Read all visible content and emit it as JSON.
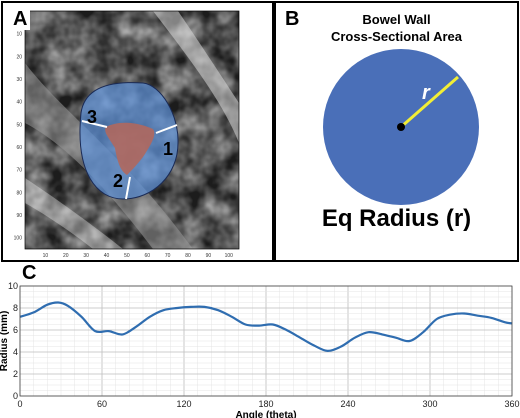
{
  "panel_a": {
    "letter": "A",
    "segment_labels": [
      "3",
      "1",
      "2"
    ],
    "x_ticks": [
      "10",
      "20",
      "30",
      "40",
      "50",
      "60",
      "70",
      "80",
      "90",
      "100"
    ],
    "y_ticks": [
      "10",
      "20",
      "30",
      "40",
      "50",
      "60",
      "70",
      "80",
      "90",
      "100"
    ],
    "colors": {
      "wall": "#5b8fd6",
      "lumen": "#b0685e",
      "divider": "#ffffff"
    }
  },
  "panel_b": {
    "letter": "B",
    "title_line1": "Bowel Wall",
    "title_line2": "Cross-Sectional Area",
    "radius_label": "r",
    "eq_label": "Eq Radius (r)",
    "colors": {
      "disk": "#4a6fb8",
      "radius_line": "#f2ee35"
    }
  },
  "panel_c": {
    "letter": "C",
    "chart_data": {
      "type": "line",
      "xlabel": "Angle (theta)",
      "ylabel": "Radius (mm)",
      "xlim": [
        0,
        360
      ],
      "ylim": [
        0,
        10
      ],
      "x_ticks": [
        "0",
        "60",
        "120",
        "180",
        "240",
        "300",
        "360"
      ],
      "y_ticks": [
        "0",
        "2",
        "4",
        "6",
        "8",
        "10"
      ],
      "grid": true,
      "series": [
        {
          "color": "#2f6db0",
          "x": [
            0,
            10,
            20,
            28,
            35,
            45,
            55,
            65,
            75,
            85,
            95,
            105,
            115,
            125,
            135,
            145,
            155,
            165,
            175,
            185,
            195,
            205,
            215,
            225,
            235,
            245,
            255,
            265,
            275,
            285,
            295,
            305,
            315,
            325,
            335,
            345,
            355,
            360
          ],
          "values": [
            7.2,
            7.6,
            8.3,
            8.5,
            8.2,
            7.2,
            5.9,
            5.9,
            5.6,
            6.3,
            7.2,
            7.8,
            8.0,
            8.1,
            8.1,
            7.8,
            7.2,
            6.5,
            6.4,
            6.5,
            6.0,
            5.3,
            4.6,
            4.1,
            4.5,
            5.3,
            5.8,
            5.6,
            5.3,
            5.0,
            5.8,
            7.0,
            7.4,
            7.5,
            7.3,
            7.1,
            6.7,
            6.6
          ]
        }
      ]
    }
  }
}
